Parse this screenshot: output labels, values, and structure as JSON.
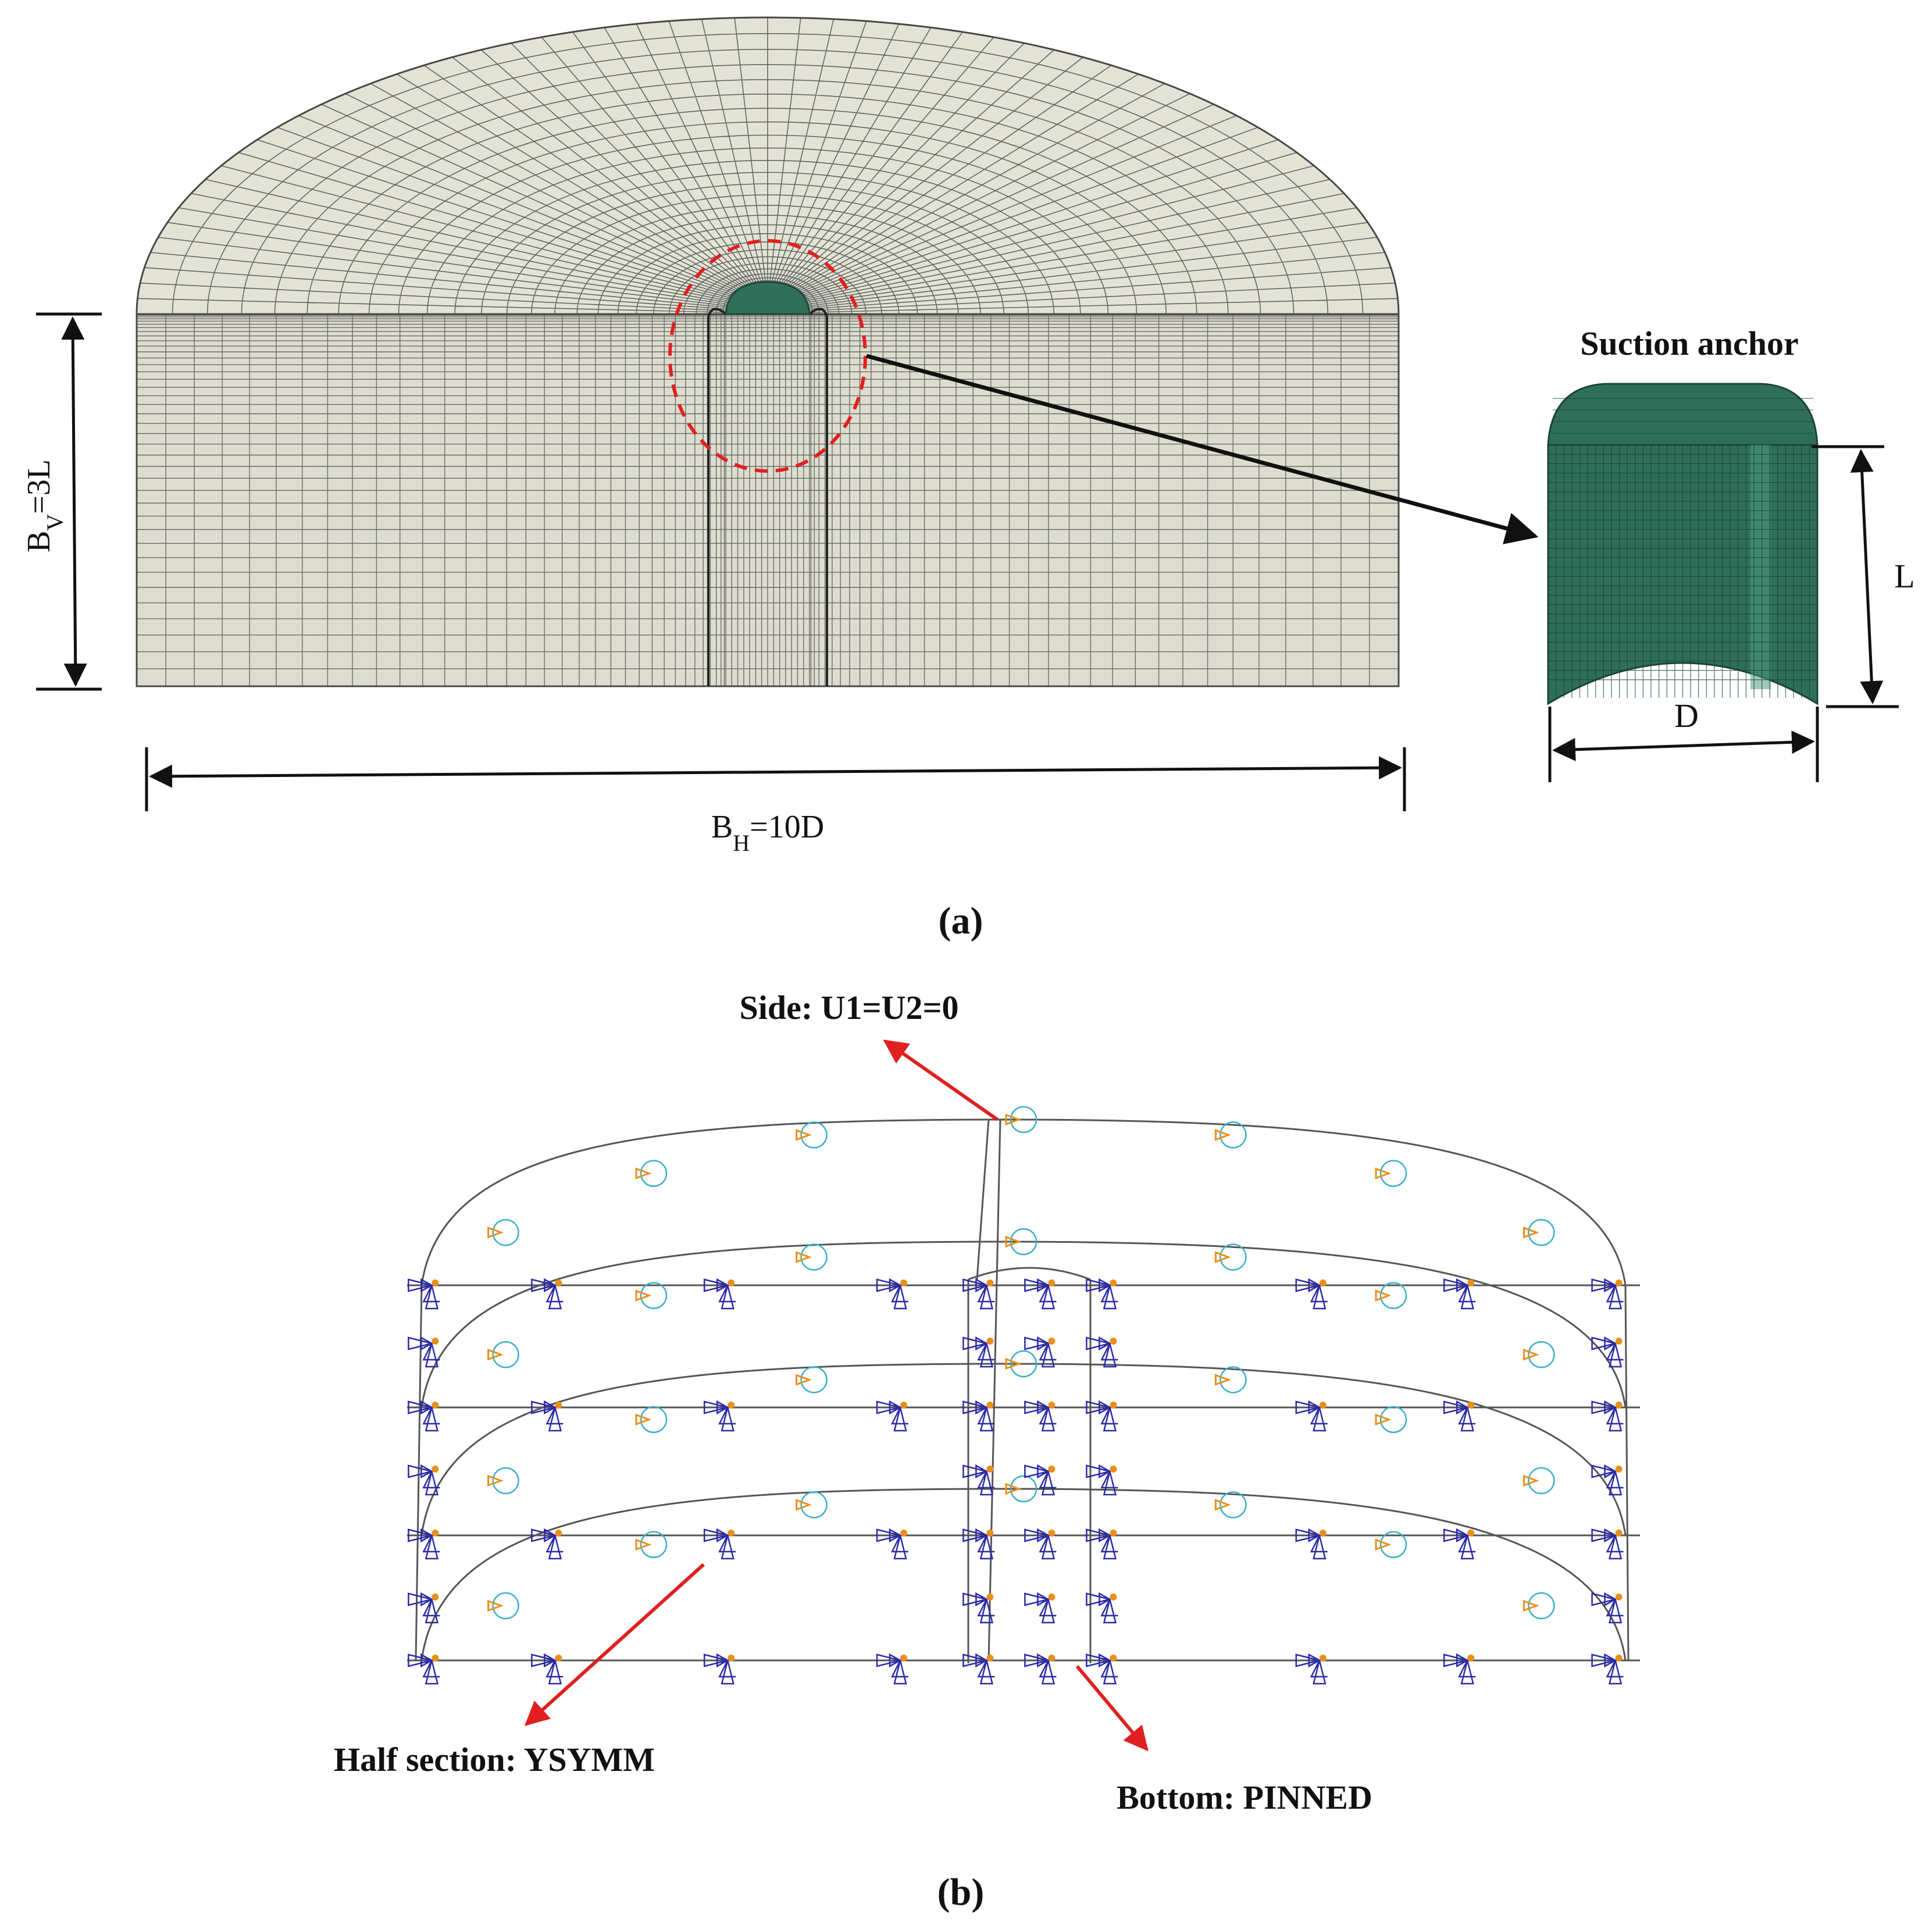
{
  "panel_a": {
    "label": "(a)",
    "callout_title": "Suction anchor",
    "dim_vertical": {
      "main": "B",
      "sub": "V",
      "rest": "=3L"
    },
    "dim_horizontal": {
      "main": "B",
      "sub": "H",
      "rest": "=10D"
    },
    "anchor_length": "L",
    "anchor_diameter": "D"
  },
  "panel_b": {
    "label": "(b)",
    "side_bc": "Side: U1=U2=0",
    "half_section_bc": "Half section: YSYMM",
    "bottom_bc": "Bottom:  PINNED"
  },
  "colors": {
    "soil": "#ddddcf",
    "soil_top": "#e3e3d5",
    "mesh_line": "#3a3a3a",
    "anchor": "#2f6f5a",
    "highlight_ring": "#e02020",
    "leader_arrow": "#111111",
    "bc_arrow": "#e02020",
    "bc_symbol": "#2a2aa8",
    "bc_circle": "#3bb0c9",
    "bc_marker": "#e8901c",
    "wire": "#555555"
  }
}
